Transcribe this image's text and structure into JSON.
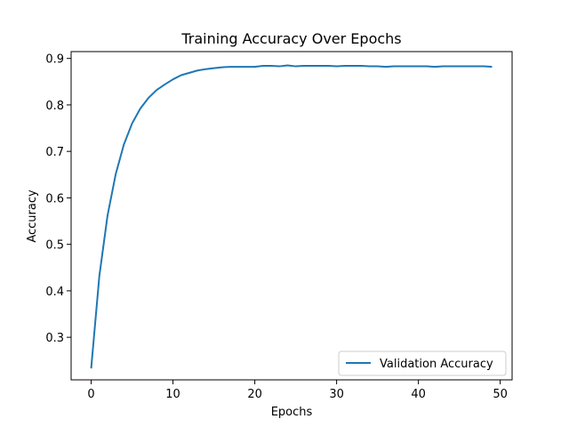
{
  "chart_data": {
    "type": "line",
    "title": "Training Accuracy Over Epochs",
    "xlabel": "Epochs",
    "ylabel": "Accuracy",
    "xlim": [
      -2.45,
      51.45
    ],
    "ylim": [
      0.2084,
      0.9147
    ],
    "xticks": [
      0,
      10,
      20,
      30,
      40,
      50
    ],
    "yticks": [
      0.3,
      0.4,
      0.5,
      0.6,
      0.7,
      0.8,
      0.9
    ],
    "ytick_labels": [
      "0.3",
      "0.4",
      "0.5",
      "0.6",
      "0.7",
      "0.8",
      "0.9"
    ],
    "grid": false,
    "legend_position": "lower right",
    "series": [
      {
        "name": "Validation Accuracy",
        "color": "#1f77b4",
        "x": [
          0,
          1,
          2,
          3,
          4,
          5,
          6,
          7,
          8,
          9,
          10,
          11,
          12,
          13,
          14,
          15,
          16,
          17,
          18,
          19,
          20,
          21,
          22,
          23,
          24,
          25,
          26,
          27,
          28,
          29,
          30,
          31,
          32,
          33,
          34,
          35,
          36,
          37,
          38,
          39,
          40,
          41,
          42,
          43,
          44,
          45,
          46,
          47,
          48,
          49
        ],
        "y": [
          0.233,
          0.432,
          0.562,
          0.651,
          0.715,
          0.76,
          0.792,
          0.815,
          0.832,
          0.844,
          0.855,
          0.864,
          0.869,
          0.874,
          0.877,
          0.879,
          0.881,
          0.882,
          0.882,
          0.882,
          0.882,
          0.884,
          0.884,
          0.883,
          0.885,
          0.883,
          0.884,
          0.884,
          0.884,
          0.884,
          0.883,
          0.884,
          0.884,
          0.884,
          0.883,
          0.883,
          0.882,
          0.883,
          0.883,
          0.883,
          0.883,
          0.883,
          0.882,
          0.883,
          0.883,
          0.883,
          0.883,
          0.883,
          0.883,
          0.882
        ]
      }
    ]
  }
}
